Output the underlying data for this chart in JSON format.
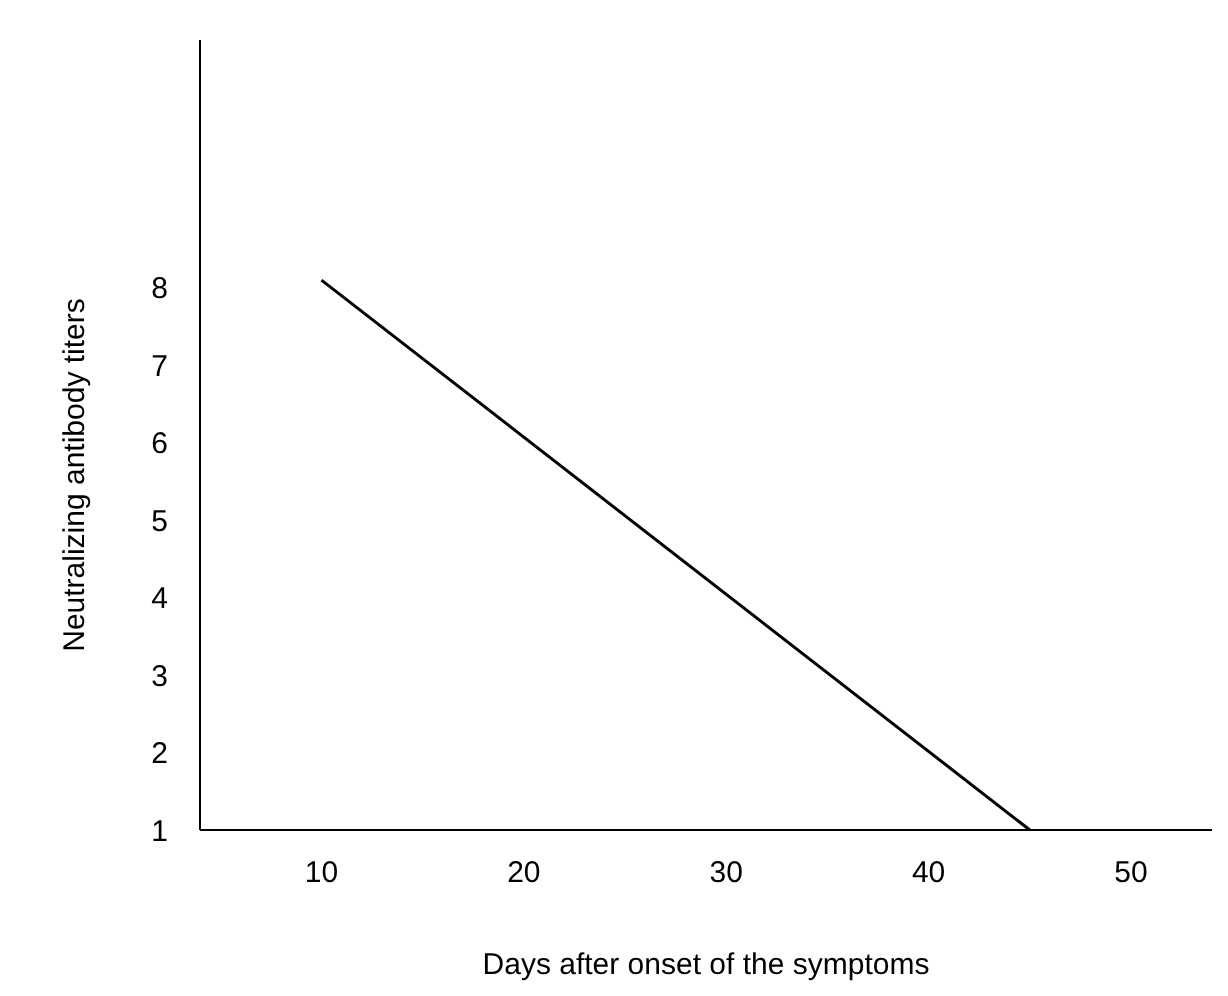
{
  "chart_data": {
    "type": "line",
    "xlabel": "Days after onset of the symptoms",
    "ylabel": "Neutralizing antibody titers",
    "x": [
      10,
      45
    ],
    "series": [
      {
        "color": "#000000",
        "values": [
          8.1,
          1
        ]
      }
    ],
    "xlim": [
      4,
      54
    ],
    "ylim": [
      1,
      11.2
    ],
    "xticks": [
      10,
      20,
      30,
      40,
      50
    ],
    "yticks": [
      1,
      2,
      3,
      4,
      5,
      6,
      7,
      8
    ],
    "marker": "none",
    "line_style": "solid"
  }
}
